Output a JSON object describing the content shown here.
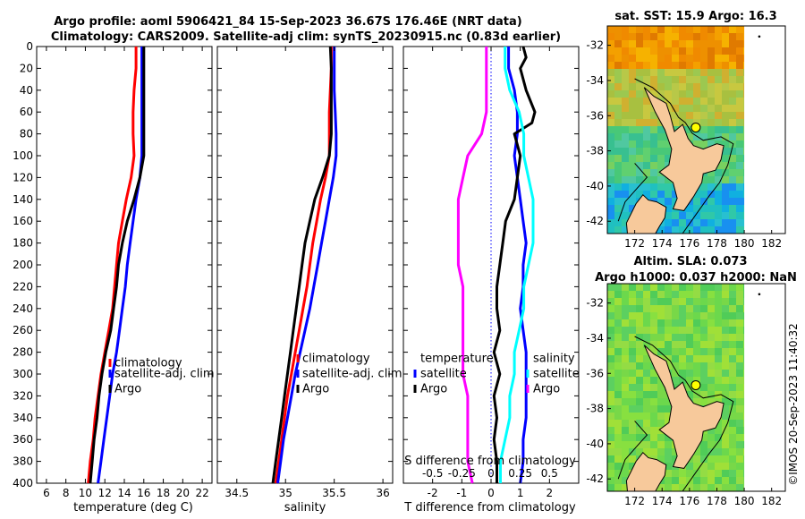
{
  "figure": {
    "title_line1": "Argo profile: aoml 5906421_84 15-Sep-2023 36.67S 176.46E (NRT data)",
    "title_line2": "Climatology: CARS2009. Satellite-adj clim: synTS_20230915.nc (0.83d earlier)",
    "credit": "©IMOS 20-Sep-2023 11:40:32"
  },
  "colors": {
    "climatology": "#ff0000",
    "satellite": "#0000ff",
    "argo": "#000000",
    "sat_salinity": "#00ffff",
    "argo_salinity": "#ff00ff",
    "land": "#f7c99b"
  },
  "chart_data": [
    {
      "id": "temperature",
      "type": "line",
      "xlabel": "temperature (deg C)",
      "xlim": [
        5,
        23
      ],
      "xticks": [
        6,
        8,
        10,
        12,
        14,
        16,
        18,
        20,
        22
      ],
      "ylim": [
        0,
        400
      ],
      "yticks": [
        0,
        20,
        40,
        60,
        80,
        100,
        120,
        140,
        160,
        180,
        200,
        220,
        240,
        260,
        280,
        300,
        320,
        340,
        360,
        380,
        400
      ],
      "legend": [
        "climatology",
        "satellite-adj. clim",
        "Argo"
      ],
      "series": [
        {
          "name": "climatology",
          "color": "#ff0000",
          "depth": [
            0,
            20,
            40,
            60,
            80,
            100,
            120,
            140,
            160,
            180,
            200,
            220,
            240,
            260,
            280,
            300,
            320,
            340,
            360,
            380,
            400
          ],
          "values": [
            15.2,
            15.2,
            15.0,
            14.9,
            14.9,
            15.0,
            14.7,
            14.2,
            13.8,
            13.4,
            13.2,
            13.0,
            12.8,
            12.4,
            12.0,
            11.6,
            11.3,
            11.0,
            10.8,
            10.5,
            10.3
          ]
        },
        {
          "name": "satellite-adj. clim",
          "color": "#0000ff",
          "depth": [
            0,
            20,
            40,
            60,
            80,
            100,
            120,
            140,
            160,
            180,
            200,
            220,
            240,
            260,
            280,
            300,
            320,
            340,
            360,
            380,
            400
          ],
          "values": [
            15.8,
            15.8,
            15.8,
            15.8,
            15.8,
            15.8,
            15.6,
            15.2,
            14.9,
            14.6,
            14.3,
            14.1,
            13.8,
            13.5,
            13.2,
            12.8,
            12.5,
            12.2,
            11.9,
            11.6,
            11.3
          ]
        },
        {
          "name": "Argo",
          "color": "#000000",
          "depth": [
            0,
            20,
            40,
            60,
            80,
            100,
            120,
            140,
            160,
            180,
            200,
            220,
            240,
            260,
            280,
            300,
            320,
            340,
            360,
            380,
            400
          ],
          "values": [
            16.0,
            16.0,
            16.0,
            16.0,
            16.0,
            16.0,
            15.6,
            15.0,
            14.3,
            13.8,
            13.4,
            13.2,
            12.9,
            12.6,
            12.1,
            11.7,
            11.4,
            11.2,
            10.9,
            10.7,
            10.5
          ]
        }
      ]
    },
    {
      "id": "salinity",
      "type": "line",
      "xlabel": "salinity",
      "xlim": [
        34.3,
        36.1
      ],
      "xticks": [
        34.5,
        35,
        35.5,
        36
      ],
      "ylim": [
        0,
        400
      ],
      "legend": [
        "climatology",
        "satellite-adj. clim",
        "Argo"
      ],
      "series": [
        {
          "name": "climatology",
          "color": "#ff0000",
          "depth": [
            0,
            20,
            40,
            60,
            80,
            100,
            120,
            140,
            160,
            180,
            200,
            220,
            240,
            260,
            280,
            300,
            320,
            340,
            360,
            380,
            400
          ],
          "values": [
            35.47,
            35.47,
            35.46,
            35.45,
            35.45,
            35.45,
            35.41,
            35.36,
            35.32,
            35.28,
            35.25,
            35.22,
            35.18,
            35.14,
            35.1,
            35.06,
            35.02,
            34.99,
            34.96,
            34.93,
            34.9
          ]
        },
        {
          "name": "satellite-adj. clim",
          "color": "#0000ff",
          "depth": [
            0,
            20,
            40,
            60,
            80,
            100,
            120,
            140,
            160,
            180,
            200,
            220,
            240,
            260,
            280,
            300,
            320,
            340,
            360,
            380,
            400
          ],
          "values": [
            35.5,
            35.5,
            35.5,
            35.51,
            35.52,
            35.52,
            35.49,
            35.45,
            35.41,
            35.37,
            35.33,
            35.29,
            35.25,
            35.2,
            35.15,
            35.1,
            35.06,
            35.02,
            34.98,
            34.95,
            34.92
          ]
        },
        {
          "name": "Argo",
          "color": "#000000",
          "depth": [
            0,
            20,
            40,
            60,
            80,
            100,
            120,
            140,
            160,
            180,
            200,
            220,
            240,
            260,
            280,
            300,
            320,
            340,
            360,
            380,
            400
          ],
          "values": [
            35.46,
            35.47,
            35.47,
            35.47,
            35.47,
            35.45,
            35.38,
            35.3,
            35.25,
            35.2,
            35.17,
            35.14,
            35.11,
            35.08,
            35.05,
            35.02,
            34.99,
            34.96,
            34.93,
            34.9,
            34.87
          ]
        }
      ]
    },
    {
      "id": "difference",
      "type": "line",
      "xlabel": "T difference from climatology",
      "xlabel_top": "S difference from climatology",
      "xlim": [
        -3,
        3
      ],
      "xticks": [
        -2,
        -1,
        0,
        1,
        2
      ],
      "xtick_labels": [
        "-2",
        "-1",
        "0",
        "1",
        "2"
      ],
      "top_ticks": [
        -2,
        -1,
        0,
        1,
        2
      ],
      "top_tick_labels": [
        "-0.5",
        "-0.25",
        "0",
        "0.25",
        "0.5"
      ],
      "ylim": [
        0,
        400
      ],
      "legend_temperature": {
        "heading": "temperature",
        "items": [
          "satellite",
          "Argo"
        ]
      },
      "legend_salinity": {
        "heading": "salinity",
        "items": [
          "satellite",
          "Argo"
        ]
      },
      "series": [
        {
          "name": "T satellite",
          "color": "#0000ff",
          "depth": [
            0,
            20,
            40,
            60,
            80,
            100,
            120,
            140,
            160,
            180,
            200,
            220,
            240,
            260,
            280,
            300,
            320,
            340,
            360,
            380,
            400
          ],
          "values": [
            0.6,
            0.6,
            0.8,
            0.9,
            0.9,
            0.8,
            0.9,
            1.0,
            1.1,
            1.2,
            1.1,
            1.1,
            1.0,
            1.1,
            1.2,
            1.2,
            1.2,
            1.2,
            1.1,
            1.1,
            1.0
          ]
        },
        {
          "name": "T Argo",
          "color": "#000000",
          "depth": [
            0,
            10,
            20,
            40,
            60,
            70,
            80,
            100,
            120,
            140,
            160,
            180,
            200,
            220,
            240,
            260,
            280,
            300,
            320,
            340,
            360,
            380,
            400
          ],
          "values": [
            1.1,
            1.2,
            1.0,
            1.2,
            1.5,
            1.4,
            0.8,
            1.0,
            0.9,
            0.8,
            0.5,
            0.4,
            0.3,
            0.2,
            0.2,
            0.3,
            0.1,
            0.3,
            0.1,
            0.2,
            0.1,
            0.2,
            0.2
          ]
        },
        {
          "name": "S satellite",
          "color": "#00ffff",
          "depth": [
            0,
            20,
            40,
            60,
            80,
            100,
            120,
            140,
            160,
            180,
            200,
            220,
            240,
            260,
            280,
            300,
            320,
            340,
            360,
            380,
            400
          ],
          "values": [
            0.12,
            0.12,
            0.16,
            0.24,
            0.28,
            0.28,
            0.32,
            0.36,
            0.36,
            0.36,
            0.32,
            0.28,
            0.28,
            0.24,
            0.2,
            0.2,
            0.16,
            0.16,
            0.12,
            0.08,
            0.08
          ]
        },
        {
          "name": "S Argo",
          "color": "#ff00ff",
          "depth": [
            0,
            20,
            40,
            60,
            80,
            100,
            120,
            140,
            160,
            180,
            200,
            220,
            240,
            260,
            280,
            300,
            320,
            340,
            360,
            380,
            400
          ],
          "values": [
            -0.04,
            -0.04,
            -0.04,
            -0.04,
            -0.08,
            -0.2,
            -0.24,
            -0.28,
            -0.28,
            -0.28,
            -0.28,
            -0.24,
            -0.24,
            -0.24,
            -0.24,
            -0.24,
            -0.2,
            -0.2,
            -0.2,
            -0.2,
            -0.16
          ]
        },
        {
          "name": "zero",
          "color": "#0000ff",
          "dotted": true,
          "depth": [
            0,
            400
          ],
          "values": [
            0,
            0
          ]
        }
      ]
    },
    {
      "id": "sst_map",
      "type": "heatmap",
      "title": "sat. SST: 15.9 Argo: 16.3",
      "xticks": [
        172,
        174,
        176,
        178,
        180,
        182
      ],
      "yticks": [
        -32,
        -34,
        -36,
        -38,
        -40,
        -42
      ],
      "xlim": [
        170,
        183
      ],
      "ylim": [
        -42.7,
        -30.9
      ],
      "float_position": [
        176.46,
        -36.67
      ]
    },
    {
      "id": "sla_map",
      "type": "heatmap",
      "title_line1": "Altim. SLA: 0.073",
      "title_line2": "Argo h1000: 0.037 h2000: NaN",
      "xticks": [
        172,
        174,
        176,
        178,
        180,
        182
      ],
      "yticks": [
        -32,
        -34,
        -36,
        -38,
        -40,
        -42
      ],
      "xlim": [
        170,
        183
      ],
      "ylim": [
        -42.7,
        -30.9
      ],
      "float_position": [
        176.46,
        -36.67
      ]
    }
  ]
}
